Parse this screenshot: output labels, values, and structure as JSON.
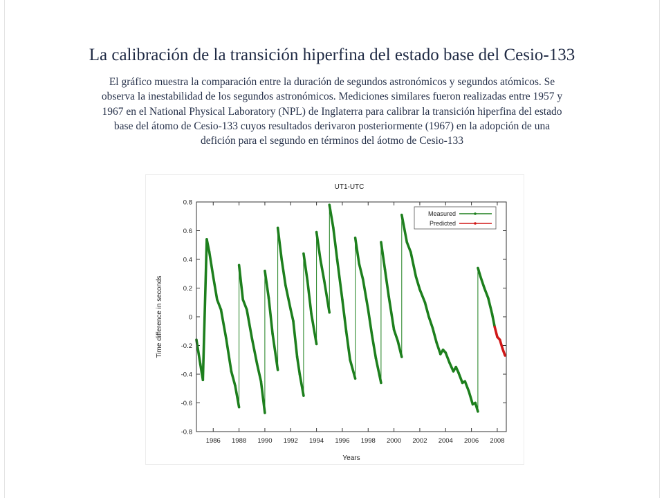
{
  "title": "La calibración de la transición hiperfina del estado base del Cesio-133",
  "description": "El gráfico muestra la comparación entre la duración de segundos astronómicos y segundos atómicos. Se observa la inestabilidad de los segundos astronómicos. Mediciones similares fueron realizadas entre 1957 y 1967 en el National Physical Laboratory (NPL) de Inglaterra para calibrar la transición hiperfina del estado base del átomo de Cesio-133 cuyos resultados derivaron posteriormente (1967) en la adopción de una defición para el segundo en términos del áotmo de Cesio-133",
  "colors": {
    "measured": "#1d7f1d",
    "predicted": "#d01818",
    "text": "#1f2a44"
  },
  "chart_data": {
    "type": "line",
    "title": "UT1-UTC",
    "xlabel": "Years",
    "ylabel": "Time difference in seconds",
    "xlim": [
      1984.7,
      2008.7
    ],
    "ylim": [
      -0.8,
      0.8
    ],
    "xticks": [
      1986,
      1988,
      1990,
      1992,
      1994,
      1996,
      1998,
      2000,
      2002,
      2004,
      2006,
      2008
    ],
    "xtick_labels": [
      "1986",
      "1988",
      "1990",
      "1992",
      "1994",
      "1996",
      "1998",
      "2000",
      "2002",
      "2004",
      "2006",
      "2008"
    ],
    "yticks": [
      -0.8,
      -0.6,
      -0.4,
      -0.2,
      0,
      0.2,
      0.4,
      0.6,
      0.8
    ],
    "ytick_labels": [
      "-0.8",
      "-0.6",
      "-0.4",
      "-0.2",
      "0",
      "0.2",
      "0.4",
      "0.6",
      "0.8"
    ],
    "grid": false,
    "legend_position": "top-right",
    "series": [
      {
        "name": "Measured",
        "color": "#1d7f1d",
        "points": [
          [
            1984.7,
            -0.16
          ],
          [
            1985.0,
            -0.33
          ],
          [
            1985.2,
            -0.44
          ],
          [
            1985.5,
            0.54
          ],
          [
            1985.7,
            0.45
          ],
          [
            1986.0,
            0.28
          ],
          [
            1986.3,
            0.12
          ],
          [
            1986.6,
            0.05
          ],
          [
            1987.0,
            -0.15
          ],
          [
            1987.4,
            -0.38
          ],
          [
            1987.7,
            -0.48
          ],
          [
            1988.0,
            -0.63
          ],
          [
            1988.0,
            0.36
          ],
          [
            1988.3,
            0.12
          ],
          [
            1988.6,
            0.05
          ],
          [
            1989.0,
            -0.15
          ],
          [
            1989.4,
            -0.33
          ],
          [
            1989.7,
            -0.45
          ],
          [
            1990.0,
            -0.67
          ],
          [
            1990.0,
            0.32
          ],
          [
            1990.3,
            0.13
          ],
          [
            1990.6,
            -0.12
          ],
          [
            1991.0,
            -0.37
          ],
          [
            1991.0,
            0.62
          ],
          [
            1991.3,
            0.4
          ],
          [
            1991.6,
            0.22
          ],
          [
            1992.0,
            0.05
          ],
          [
            1992.2,
            -0.03
          ],
          [
            1992.5,
            -0.28
          ],
          [
            1992.7,
            -0.4
          ],
          [
            1993.0,
            -0.55
          ],
          [
            1993.0,
            0.44
          ],
          [
            1993.3,
            0.25
          ],
          [
            1993.6,
            0.02
          ],
          [
            1994.0,
            -0.19
          ],
          [
            1994.0,
            0.59
          ],
          [
            1994.3,
            0.4
          ],
          [
            1994.6,
            0.25
          ],
          [
            1995.0,
            0.03
          ],
          [
            1995.0,
            0.78
          ],
          [
            1995.3,
            0.62
          ],
          [
            1995.6,
            0.4
          ],
          [
            1996.0,
            0.12
          ],
          [
            1996.3,
            -0.1
          ],
          [
            1996.6,
            -0.3
          ],
          [
            1997.0,
            -0.43
          ],
          [
            1997.0,
            0.55
          ],
          [
            1997.3,
            0.37
          ],
          [
            1997.6,
            0.26
          ],
          [
            1998.0,
            0.05
          ],
          [
            1998.3,
            -0.13
          ],
          [
            1998.6,
            -0.29
          ],
          [
            1999.0,
            -0.46
          ],
          [
            1999.0,
            0.52
          ],
          [
            1999.3,
            0.33
          ],
          [
            1999.6,
            0.14
          ],
          [
            2000.0,
            -0.09
          ],
          [
            2000.3,
            -0.17
          ],
          [
            2000.6,
            -0.28
          ],
          [
            2000.6,
            0.71
          ],
          [
            2001.0,
            0.52
          ],
          [
            2001.3,
            0.45
          ],
          [
            2001.7,
            0.28
          ],
          [
            2002.0,
            0.19
          ],
          [
            2002.4,
            0.1
          ],
          [
            2002.7,
            0.0
          ],
          [
            2003.0,
            -0.08
          ],
          [
            2003.3,
            -0.18
          ],
          [
            2003.6,
            -0.26
          ],
          [
            2003.8,
            -0.23
          ],
          [
            2004.0,
            -0.25
          ],
          [
            2004.3,
            -0.32
          ],
          [
            2004.6,
            -0.38
          ],
          [
            2004.8,
            -0.35
          ],
          [
            2005.0,
            -0.39
          ],
          [
            2005.3,
            -0.46
          ],
          [
            2005.5,
            -0.45
          ],
          [
            2005.8,
            -0.52
          ],
          [
            2006.1,
            -0.61
          ],
          [
            2006.3,
            -0.6
          ],
          [
            2006.5,
            -0.66
          ],
          [
            2006.5,
            0.34
          ],
          [
            2006.7,
            0.28
          ],
          [
            2007.0,
            0.2
          ],
          [
            2007.3,
            0.13
          ],
          [
            2007.6,
            0.02
          ],
          [
            2007.8,
            -0.07
          ]
        ]
      },
      {
        "name": "Predicted",
        "color": "#d01818",
        "points": [
          [
            2007.8,
            -0.07
          ],
          [
            2008.0,
            -0.14
          ],
          [
            2008.2,
            -0.16
          ],
          [
            2008.4,
            -0.22
          ],
          [
            2008.6,
            -0.27
          ]
        ]
      }
    ]
  }
}
